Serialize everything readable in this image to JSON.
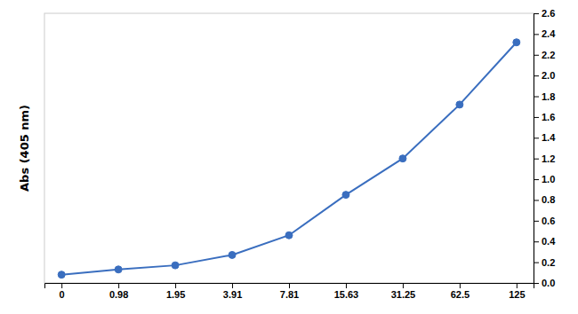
{
  "chart_data": {
    "type": "line",
    "ylabel": "Abs (405 nm)",
    "categories": [
      "0",
      "0.98",
      "1.95",
      "3.91",
      "7.81",
      "15.63",
      "31.25",
      "62.5",
      "125"
    ],
    "values": [
      0.08,
      0.13,
      0.17,
      0.27,
      0.46,
      0.85,
      1.2,
      1.72,
      2.32
    ],
    "color": "#3A6EBF",
    "marker": "circle",
    "ylim": [
      0.0,
      2.6
    ],
    "yticks": [
      {
        "value": 0.0,
        "label": "0.0"
      },
      0.2,
      0.4,
      0.6,
      0.8,
      {
        "value": 1.0,
        "label": "1.0"
      },
      1.2,
      1.4,
      1.6,
      1.8,
      {
        "value": 2.0,
        "label": "2.0"
      },
      2.2,
      2.4,
      2.6
    ],
    "grid": false
  }
}
